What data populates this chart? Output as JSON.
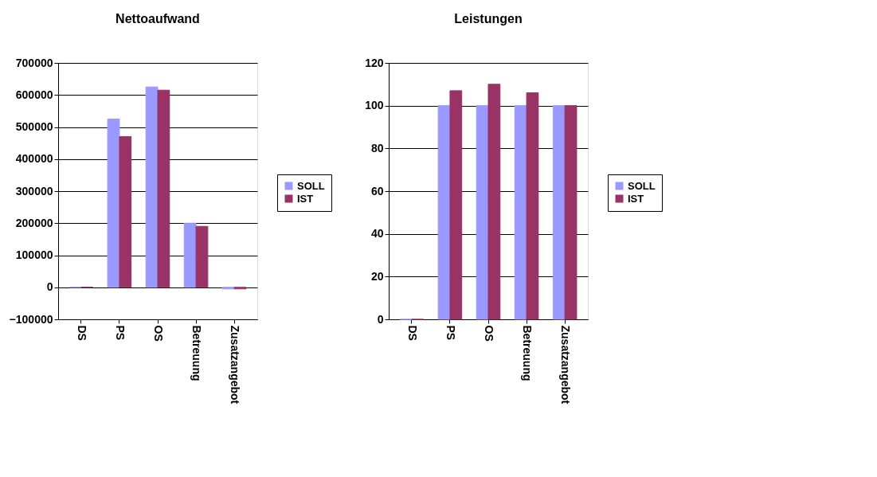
{
  "chart_data": [
    {
      "type": "bar",
      "title": "Nettoaufwand",
      "categories": [
        "DS",
        "PS",
        "OS",
        "Betreuung",
        "Zusatzangebot"
      ],
      "series": [
        {
          "name": "SOLL",
          "color": "#9999ff",
          "values": [
            0,
            525000,
            625000,
            200000,
            -5000
          ]
        },
        {
          "name": "IST",
          "color": "#993366",
          "values": [
            0,
            470000,
            615000,
            190000,
            -5000
          ]
        }
      ],
      "ylim": [
        -100000,
        700000
      ],
      "yticks": [
        -100000,
        0,
        100000,
        200000,
        300000,
        400000,
        500000,
        600000,
        700000
      ],
      "grid": "y",
      "legend": "right"
    },
    {
      "type": "bar",
      "title": "Leistungen",
      "categories": [
        "DS",
        "PS",
        "OS",
        "Betreuung",
        "Zusatzangebot"
      ],
      "series": [
        {
          "name": "SOLL",
          "color": "#9999ff",
          "values": [
            0,
            100,
            100,
            100,
            100
          ]
        },
        {
          "name": "IST",
          "color": "#993366",
          "values": [
            0,
            107,
            110,
            106,
            100
          ]
        }
      ],
      "ylim": [
        0,
        120
      ],
      "yticks": [
        0,
        20,
        40,
        60,
        80,
        100,
        120
      ],
      "grid": "y",
      "legend": "right"
    }
  ]
}
